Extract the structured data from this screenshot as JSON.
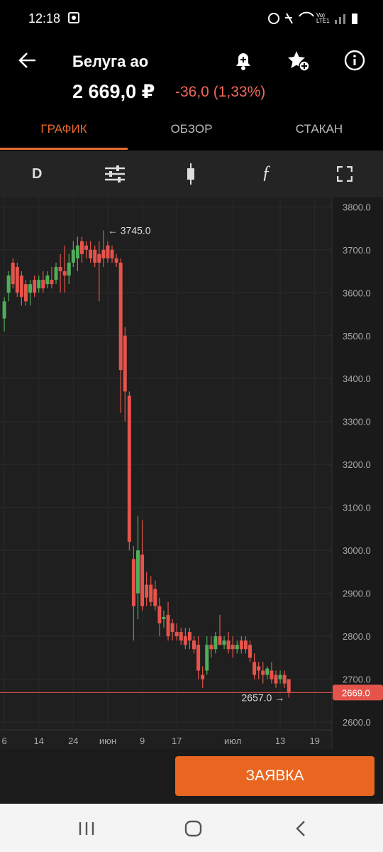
{
  "status_bar": {
    "time": "12:18",
    "network": "Vo) LTE1"
  },
  "header": {
    "title": "Белуга ао",
    "price": "2 669,0 ₽",
    "change": "-36,0 (1,33%)"
  },
  "tabs": [
    "ГРАФИК",
    "ОБЗОР",
    "СТАКАН"
  ],
  "toolbar": {
    "period": "D"
  },
  "order_button": "ЗАЯВКА",
  "chart_data": {
    "type": "candlestick",
    "x": [
      0,
      1,
      2,
      3,
      4,
      5,
      6,
      7,
      8,
      9,
      10,
      11,
      12,
      13,
      14,
      15,
      16,
      17,
      18,
      19,
      20,
      21,
      22,
      23,
      24,
      25,
      26,
      27,
      28,
      29,
      30,
      31,
      32,
      33,
      34,
      35,
      36,
      37,
      38,
      39,
      40,
      41,
      42,
      43,
      44,
      45,
      46,
      47,
      48,
      49,
      50,
      51,
      52,
      53,
      54,
      55,
      56,
      57,
      58,
      59,
      60,
      61,
      62,
      63,
      64,
      65,
      66
    ],
    "open": [
      3540,
      3600,
      3670,
      3660,
      3640,
      3620,
      3600,
      3630,
      3610,
      3630,
      3620,
      3630,
      3630,
      3660,
      3650,
      3640,
      3670,
      3680,
      3720,
      3710,
      3700,
      3700,
      3690,
      3700,
      3710,
      3700,
      3680,
      3670,
      3500,
      3360,
      2980,
      2900,
      2990,
      2920,
      2920,
      2910,
      2870,
      2840,
      2850,
      2830,
      2810,
      2810,
      2800,
      2810,
      2790,
      2780,
      2710,
      2720,
      2780,
      2770,
      2800,
      2780,
      2790,
      2780,
      2770,
      2790,
      2790,
      2780,
      2740,
      2730,
      2720,
      2710,
      2720,
      2710,
      2700,
      2710,
      2700
    ],
    "high": [
      3590,
      3650,
      3680,
      3670,
      3650,
      3630,
      3630,
      3640,
      3640,
      3650,
      3650,
      3660,
      3670,
      3690,
      3710,
      3690,
      3720,
      3730,
      3730,
      3720,
      3720,
      3710,
      3720,
      3745,
      3720,
      3710,
      3690,
      3680,
      3520,
      3370,
      3010,
      3080,
      3070,
      2950,
      2940,
      2930,
      2890,
      2860,
      2880,
      2840,
      2830,
      2820,
      2820,
      2820,
      2800,
      2800,
      2730,
      2800,
      2800,
      2810,
      2850,
      2800,
      2810,
      2800,
      2790,
      2800,
      2800,
      2790,
      2760,
      2740,
      2740,
      2730,
      2740,
      2720,
      2720,
      2720,
      2700
    ],
    "low": [
      3510,
      3580,
      3610,
      3590,
      3570,
      3570,
      3570,
      3590,
      3600,
      3600,
      3610,
      3610,
      3620,
      3600,
      3600,
      3620,
      3660,
      3650,
      3670,
      3680,
      3670,
      3660,
      3580,
      3660,
      3670,
      3670,
      3660,
      3320,
      3300,
      3000,
      2790,
      2840,
      2860,
      2870,
      2870,
      2860,
      2800,
      2820,
      2790,
      2790,
      2790,
      2780,
      2770,
      2770,
      2760,
      2700,
      2680,
      2710,
      2750,
      2760,
      2780,
      2770,
      2760,
      2750,
      2760,
      2760,
      2760,
      2740,
      2700,
      2700,
      2690,
      2700,
      2690,
      2680,
      2690,
      2680,
      2657
    ],
    "close": [
      3580,
      3640,
      3620,
      3600,
      3590,
      3580,
      3620,
      3600,
      3630,
      3610,
      3640,
      3620,
      3660,
      3650,
      3640,
      3670,
      3700,
      3710,
      3690,
      3700,
      3680,
      3670,
      3670,
      3680,
      3680,
      3680,
      3670,
      3420,
      3370,
      3020,
      2870,
      3000,
      2870,
      2890,
      2880,
      2870,
      2830,
      2845,
      2800,
      2810,
      2800,
      2790,
      2780,
      2790,
      2770,
      2720,
      2700,
      2780,
      2770,
      2800,
      2780,
      2790,
      2770,
      2770,
      2780,
      2770,
      2770,
      2750,
      2710,
      2720,
      2710,
      2725,
      2700,
      2690,
      2710,
      2690,
      2669
    ],
    "up_color": "#4fae5a",
    "down_color": "#e5544b",
    "xlim": [
      -1,
      76
    ],
    "xticks": [
      {
        "value": 0,
        "label": "6"
      },
      {
        "value": 8,
        "label": "14"
      },
      {
        "value": 16,
        "label": "24"
      },
      {
        "value": 24,
        "label": "июн"
      },
      {
        "value": 32,
        "label": "9"
      },
      {
        "value": 40,
        "label": "17"
      },
      {
        "value": 53,
        "label": "июл"
      },
      {
        "value": 64,
        "label": "13"
      },
      {
        "value": 72,
        "label": "19"
      }
    ],
    "ylim": [
      2582,
      3822
    ],
    "yticks": [
      {
        "value": 2600,
        "label": "2600.0"
      },
      {
        "value": 2700,
        "label": "2700.0"
      },
      {
        "value": 2800,
        "label": "2800.0"
      },
      {
        "value": 2900,
        "label": "2900.0"
      },
      {
        "value": 3000,
        "label": "3000.0"
      },
      {
        "value": 3100,
        "label": "3100.0"
      },
      {
        "value": 3200,
        "label": "3200.0"
      },
      {
        "value": 3300,
        "label": "3300.0"
      },
      {
        "value": 3400,
        "label": "3400.0"
      },
      {
        "value": 3500,
        "label": "3500.0"
      },
      {
        "value": 3600,
        "label": "3600.0"
      },
      {
        "value": 3700,
        "label": "3700.0"
      },
      {
        "value": 3800,
        "label": "3800.0"
      }
    ],
    "grid": true,
    "last_price": {
      "value": 2669,
      "label": "2669.0",
      "color": "#e5544b"
    },
    "annotations": [
      {
        "x": 23,
        "y": 3745,
        "text": "← 3745.0",
        "side": "right"
      },
      {
        "x": 66,
        "y": 2657,
        "text": "2657.0 →",
        "side": "left"
      }
    ]
  }
}
